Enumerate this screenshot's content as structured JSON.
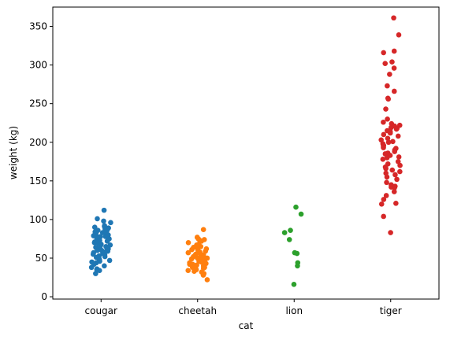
{
  "chart_data": {
    "type": "scatter",
    "subtype": "strip",
    "title": "",
    "xlabel": "cat",
    "ylabel": "weight (kg)",
    "categories": [
      "cougar",
      "cheetah",
      "lion",
      "tiger"
    ],
    "ylim": [
      -3,
      375
    ],
    "yticks": [
      0,
      50,
      100,
      150,
      200,
      250,
      300,
      350
    ],
    "grid": false,
    "legend": "none",
    "series": [
      {
        "category": "cougar",
        "color": "#1f77b4",
        "values": [
          112,
          101,
          98,
          96,
          92,
          91,
          90,
          89,
          88,
          87,
          86,
          86,
          85,
          84,
          83,
          82,
          82,
          81,
          80,
          80,
          79,
          78,
          78,
          77,
          76,
          76,
          75,
          74,
          73,
          73,
          72,
          71,
          70,
          70,
          69,
          68,
          67,
          66,
          65,
          64,
          63,
          62,
          61,
          60,
          60,
          59,
          58,
          57,
          56,
          55,
          54,
          53,
          52,
          51,
          50,
          49,
          48,
          47,
          46,
          45,
          44,
          42,
          40,
          38,
          36,
          35,
          34,
          30
        ]
      },
      {
        "category": "cheetah",
        "color": "#ff7f0e",
        "values": [
          87,
          77,
          75,
          74,
          73,
          72,
          70,
          68,
          67,
          66,
          65,
          64,
          63,
          62,
          61,
          60,
          59,
          58,
          57,
          56,
          55,
          55,
          54,
          53,
          52,
          51,
          50,
          50,
          49,
          48,
          47,
          46,
          46,
          45,
          44,
          43,
          42,
          42,
          41,
          40,
          39,
          38,
          38,
          37,
          36,
          35,
          34,
          33,
          32,
          30,
          28,
          22
        ]
      },
      {
        "category": "lion",
        "color": "#2ca02c",
        "values": [
          116,
          107,
          86,
          83,
          74,
          57,
          56,
          44,
          40,
          16
        ]
      },
      {
        "category": "tiger",
        "color": "#d62728",
        "values": [
          361,
          339,
          318,
          316,
          304,
          302,
          296,
          288,
          273,
          266,
          257,
          256,
          243,
          230,
          226,
          224,
          222,
          221,
          219,
          218,
          217,
          215,
          214,
          212,
          210,
          208,
          205,
          203,
          201,
          200,
          198,
          196,
          195,
          193,
          192,
          190,
          188,
          186,
          185,
          183,
          181,
          180,
          178,
          175,
          172,
          170,
          168,
          166,
          164,
          162,
          160,
          158,
          155,
          152,
          148,
          145,
          143,
          142,
          141,
          136,
          131,
          126,
          121,
          120,
          104,
          83
        ]
      }
    ]
  }
}
